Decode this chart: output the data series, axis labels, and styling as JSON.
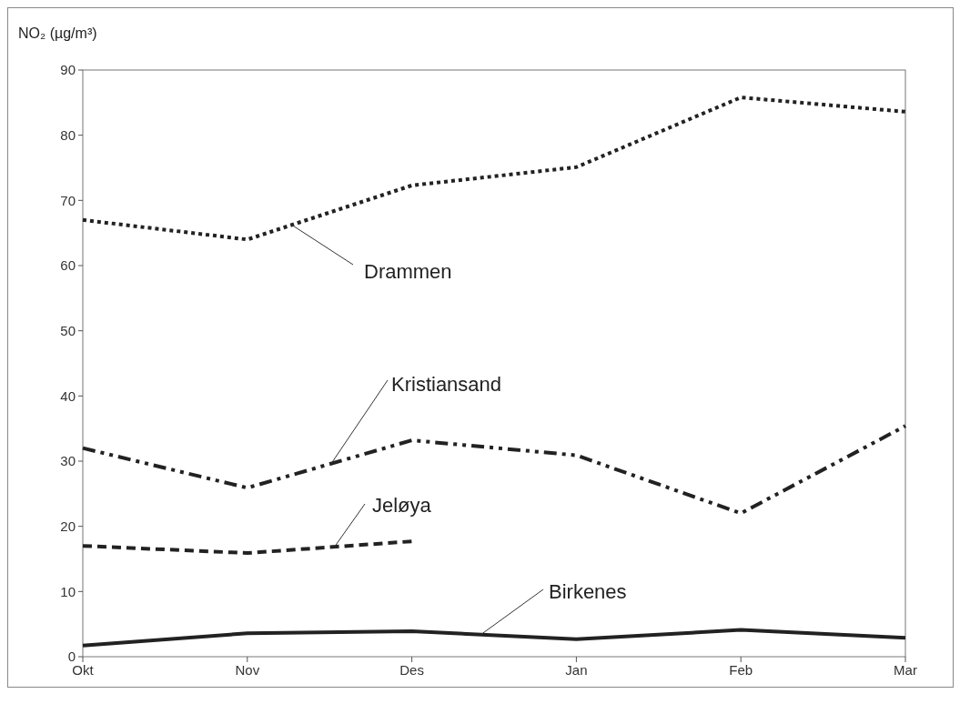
{
  "chart_data": {
    "type": "line",
    "ylabel": "NO₂ (µg/m³)",
    "categories": [
      "Okt",
      "Nov",
      "Des",
      "Jan",
      "Feb",
      "Mar"
    ],
    "ylim": [
      0,
      90
    ],
    "yticks": [
      0,
      10,
      20,
      30,
      40,
      50,
      60,
      70,
      80,
      90
    ],
    "grid": false,
    "series": [
      {
        "name": "Drammen",
        "color": "#222222",
        "line_style": "dotted",
        "values": [
          67,
          64,
          72.3,
          75.1,
          85.8,
          83.6
        ]
      },
      {
        "name": "Kristiansand",
        "color": "#222222",
        "line_style": "dashdot",
        "values": [
          32,
          25.9,
          33.2,
          30.9,
          22,
          35.4
        ]
      },
      {
        "name": "Jeløya",
        "color": "#222222",
        "line_style": "dashed",
        "values": [
          17,
          15.9,
          17.7,
          null,
          null,
          null
        ]
      },
      {
        "name": "Birkenes",
        "color": "#222222",
        "line_style": "solid",
        "values": [
          1.7,
          3.6,
          3.9,
          2.7,
          4.1,
          2.9
        ]
      }
    ]
  }
}
